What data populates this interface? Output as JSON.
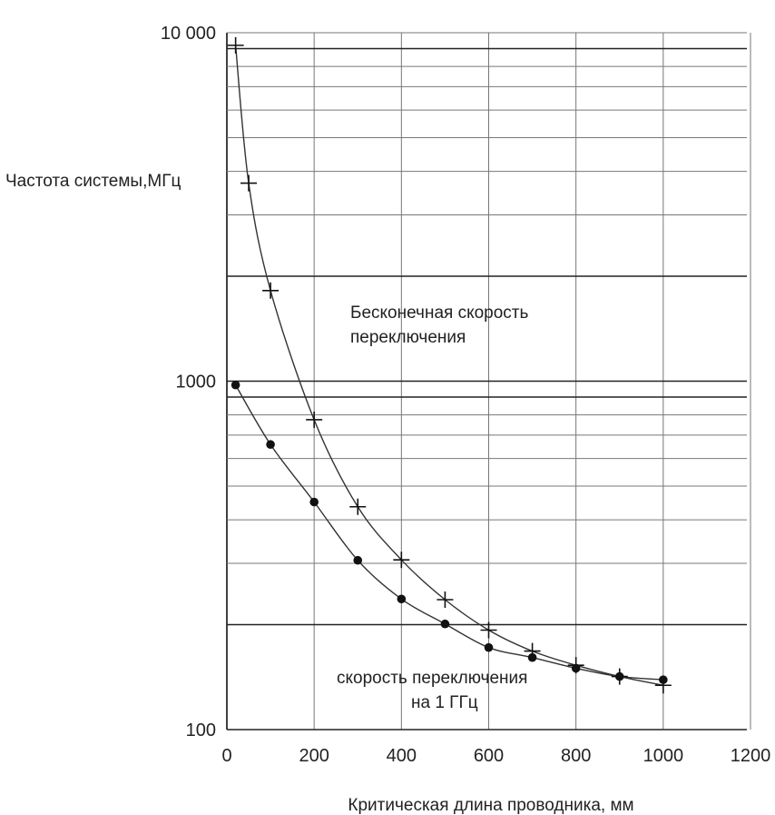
{
  "chart_data": {
    "type": "scatter",
    "title": "",
    "ylabel": "Частота системы,МГц",
    "xlabel": "Критическая длина проводника, мм",
    "x_ticks": [
      "0",
      "200",
      "400",
      "600",
      "800",
      "1000",
      "1200"
    ],
    "y_ticks": [
      "100",
      "1000",
      "10 000"
    ],
    "xlim": [
      0,
      1200
    ],
    "ylim": [
      100,
      10000
    ],
    "y_scale": "log",
    "grid": true,
    "annotations": [
      {
        "line1": "Бесконечная скорость",
        "line2": "переключения"
      },
      {
        "line1": "скорость переключения",
        "line2": "на 1 ГГц"
      }
    ],
    "series": [
      {
        "marker": "plus",
        "x": [
          20,
          50,
          100,
          200,
          300,
          400,
          500,
          600,
          700,
          800,
          900,
          1000
        ],
        "y": [
          9200,
          3700,
          1820,
          775,
          436,
          307,
          236,
          193,
          168,
          153,
          142,
          134
        ]
      },
      {
        "marker": "dot",
        "x": [
          20,
          100,
          200,
          300,
          400,
          500,
          600,
          700,
          800,
          900,
          1000
        ],
        "y": [
          975,
          658,
          450,
          306,
          237,
          201,
          172,
          161,
          150,
          142,
          139
        ]
      }
    ]
  }
}
